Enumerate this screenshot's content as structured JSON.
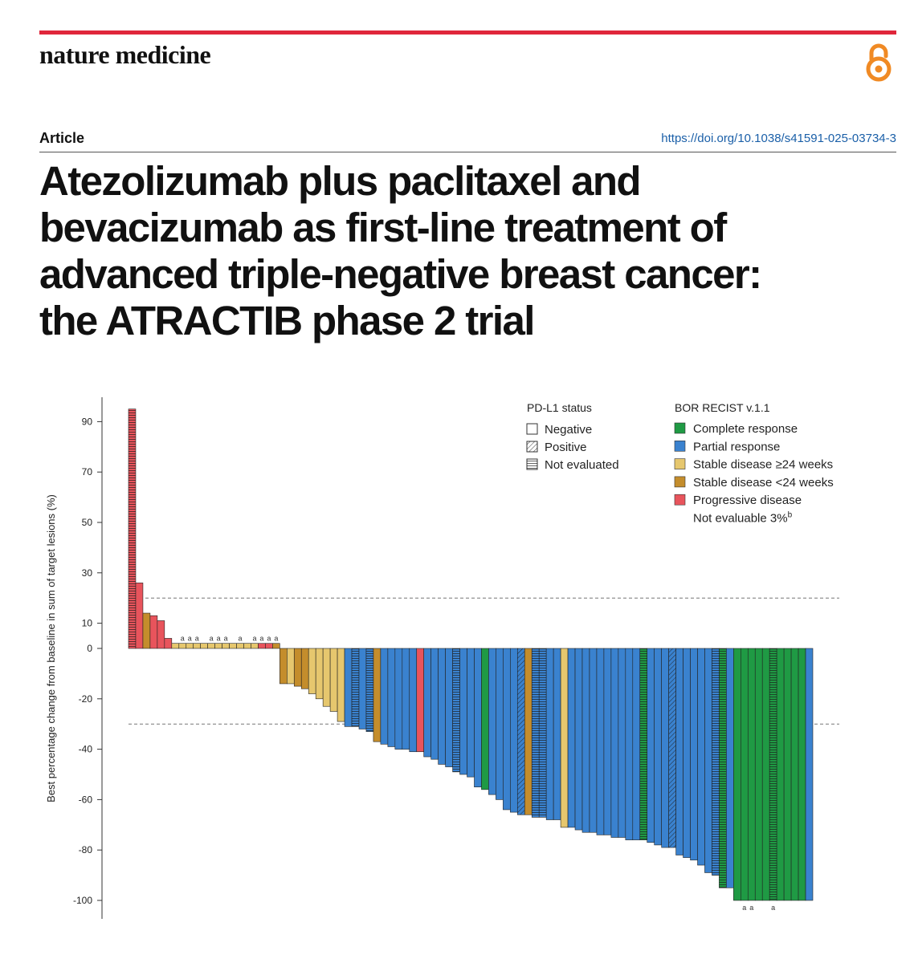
{
  "header": {
    "journal": "nature medicine",
    "article_type": "Article",
    "doi": "https://doi.org/10.1038/s41591-025-03734-3",
    "title_lines": [
      "Atezolizumab plus paclitaxel and",
      "bevacizumab as first-line treatment of",
      "advanced triple-negative breast cancer:",
      "the ATRACTIB phase 2 trial"
    ]
  },
  "colors": {
    "brand_red": "#e0263b",
    "link_blue": "#1a5fa8",
    "oa_orange": "#f08a24"
  },
  "chart_data": {
    "type": "bar",
    "ylabel": "Best percentage change from baseline in sum of target lesions (%)",
    "ylim": [
      -100,
      100
    ],
    "yticks": [
      90,
      70,
      50,
      30,
      10,
      0,
      -20,
      -40,
      -60,
      -80,
      -100
    ],
    "reference_lines": [
      20,
      -30
    ],
    "note_marker": "a",
    "legend": {
      "pdl1": {
        "title": "PD-L1 status",
        "items": [
          {
            "key": "N",
            "label": "Negative"
          },
          {
            "key": "P",
            "label": "Positive"
          },
          {
            "key": "E",
            "label": "Not evaluated"
          }
        ]
      },
      "bor": {
        "title": "BOR RECIST v.1.1",
        "items": [
          {
            "key": "CR",
            "label": "Complete response",
            "color": "#1f9a44"
          },
          {
            "key": "PR",
            "label": "Partial response",
            "color": "#3a82cf"
          },
          {
            "key": "SDL",
            "label": "Stable disease ≥24 weeks",
            "color": "#e6c76e"
          },
          {
            "key": "SDS",
            "label": "Stable disease <24 weeks",
            "color": "#c48d2c"
          },
          {
            "key": "PD",
            "label": "Progressive disease",
            "color": "#e8545c"
          }
        ],
        "not_evaluable": "Not evaluable 3%",
        "not_evaluable_sup": "b"
      }
    },
    "bars": [
      {
        "v": 95,
        "c": "PD",
        "p": "E"
      },
      {
        "v": 26,
        "c": "PD",
        "p": "N"
      },
      {
        "v": 14,
        "c": "SDS",
        "p": "N"
      },
      {
        "v": 13,
        "c": "PD",
        "p": "N"
      },
      {
        "v": 11,
        "c": "PD",
        "p": "N"
      },
      {
        "v": 4,
        "c": "PD",
        "p": "N"
      },
      {
        "v": 2,
        "c": "SDL",
        "p": "N"
      },
      {
        "v": 2,
        "c": "SDL",
        "p": "N",
        "a": true
      },
      {
        "v": 2,
        "c": "SDL",
        "p": "N",
        "a": true
      },
      {
        "v": 2,
        "c": "SDL",
        "p": "N",
        "a": true
      },
      {
        "v": 2,
        "c": "SDL",
        "p": "N"
      },
      {
        "v": 2,
        "c": "SDL",
        "p": "N",
        "a": true
      },
      {
        "v": 2,
        "c": "SDL",
        "p": "N",
        "a": true
      },
      {
        "v": 2,
        "c": "SDL",
        "p": "N",
        "a": true
      },
      {
        "v": 2,
        "c": "SDL",
        "p": "N"
      },
      {
        "v": 2,
        "c": "SDL",
        "p": "N",
        "a": true
      },
      {
        "v": 2,
        "c": "SDL",
        "p": "N"
      },
      {
        "v": 2,
        "c": "SDL",
        "p": "N",
        "a": true
      },
      {
        "v": 2,
        "c": "PD",
        "p": "N",
        "a": true
      },
      {
        "v": 2,
        "c": "PD",
        "p": "N",
        "a": true
      },
      {
        "v": 2,
        "c": "SDS",
        "p": "N",
        "a": true
      },
      {
        "v": -14,
        "c": "SDS",
        "p": "N"
      },
      {
        "v": -14,
        "c": "SDL",
        "p": "N"
      },
      {
        "v": -15,
        "c": "SDS",
        "p": "N"
      },
      {
        "v": -16,
        "c": "SDS",
        "p": "N"
      },
      {
        "v": -18,
        "c": "SDL",
        "p": "N"
      },
      {
        "v": -20,
        "c": "SDL",
        "p": "N"
      },
      {
        "v": -23,
        "c": "SDL",
        "p": "N"
      },
      {
        "v": -25,
        "c": "SDL",
        "p": "N"
      },
      {
        "v": -29,
        "c": "SDL",
        "p": "N"
      },
      {
        "v": -31,
        "c": "PR",
        "p": "N"
      },
      {
        "v": -31,
        "c": "PR",
        "p": "E"
      },
      {
        "v": -32,
        "c": "PR",
        "p": "N"
      },
      {
        "v": -33,
        "c": "PR",
        "p": "E"
      },
      {
        "v": -37,
        "c": "SDS",
        "p": "N"
      },
      {
        "v": -38,
        "c": "PR",
        "p": "N"
      },
      {
        "v": -39,
        "c": "PR",
        "p": "N"
      },
      {
        "v": -40,
        "c": "PR",
        "p": "N"
      },
      {
        "v": -40,
        "c": "PR",
        "p": "N"
      },
      {
        "v": -41,
        "c": "PR",
        "p": "N"
      },
      {
        "v": -41,
        "c": "PD",
        "p": "N"
      },
      {
        "v": -43,
        "c": "PR",
        "p": "N"
      },
      {
        "v": -44,
        "c": "PR",
        "p": "N"
      },
      {
        "v": -46,
        "c": "PR",
        "p": "N"
      },
      {
        "v": -47,
        "c": "PR",
        "p": "N"
      },
      {
        "v": -49,
        "c": "PR",
        "p": "E"
      },
      {
        "v": -50,
        "c": "PR",
        "p": "N"
      },
      {
        "v": -51,
        "c": "PR",
        "p": "N"
      },
      {
        "v": -55,
        "c": "PR",
        "p": "N"
      },
      {
        "v": -56,
        "c": "CR",
        "p": "N"
      },
      {
        "v": -58,
        "c": "PR",
        "p": "N"
      },
      {
        "v": -60,
        "c": "PR",
        "p": "N"
      },
      {
        "v": -64,
        "c": "PR",
        "p": "N"
      },
      {
        "v": -65,
        "c": "PR",
        "p": "N"
      },
      {
        "v": -66,
        "c": "PR",
        "p": "P"
      },
      {
        "v": -66,
        "c": "SDS",
        "p": "N"
      },
      {
        "v": -67,
        "c": "PR",
        "p": "E"
      },
      {
        "v": -67,
        "c": "PR",
        "p": "E"
      },
      {
        "v": -68,
        "c": "PR",
        "p": "N"
      },
      {
        "v": -68,
        "c": "PR",
        "p": "N"
      },
      {
        "v": -71,
        "c": "SDL",
        "p": "N"
      },
      {
        "v": -71,
        "c": "PR",
        "p": "N"
      },
      {
        "v": -72,
        "c": "PR",
        "p": "N"
      },
      {
        "v": -73,
        "c": "PR",
        "p": "N"
      },
      {
        "v": -73,
        "c": "PR",
        "p": "N"
      },
      {
        "v": -74,
        "c": "PR",
        "p": "N"
      },
      {
        "v": -74,
        "c": "PR",
        "p": "N"
      },
      {
        "v": -75,
        "c": "PR",
        "p": "N"
      },
      {
        "v": -75,
        "c": "PR",
        "p": "N"
      },
      {
        "v": -76,
        "c": "PR",
        "p": "N"
      },
      {
        "v": -76,
        "c": "PR",
        "p": "N"
      },
      {
        "v": -76,
        "c": "CR",
        "p": "E"
      },
      {
        "v": -77,
        "c": "PR",
        "p": "N"
      },
      {
        "v": -78,
        "c": "PR",
        "p": "N"
      },
      {
        "v": -79,
        "c": "PR",
        "p": "N"
      },
      {
        "v": -79,
        "c": "PR",
        "p": "P"
      },
      {
        "v": -82,
        "c": "PR",
        "p": "N"
      },
      {
        "v": -83,
        "c": "PR",
        "p": "N"
      },
      {
        "v": -84,
        "c": "PR",
        "p": "N"
      },
      {
        "v": -86,
        "c": "PR",
        "p": "N"
      },
      {
        "v": -89,
        "c": "PR",
        "p": "N"
      },
      {
        "v": -90,
        "c": "PR",
        "p": "E"
      },
      {
        "v": -95,
        "c": "CR",
        "p": "E"
      },
      {
        "v": -95,
        "c": "PR",
        "p": "N"
      },
      {
        "v": -100,
        "c": "CR",
        "p": "N"
      },
      {
        "v": -100,
        "c": "CR",
        "p": "N",
        "a": true
      },
      {
        "v": -100,
        "c": "CR",
        "p": "N",
        "a": true
      },
      {
        "v": -100,
        "c": "CR",
        "p": "N"
      },
      {
        "v": -100,
        "c": "CR",
        "p": "N"
      },
      {
        "v": -100,
        "c": "CR",
        "p": "E",
        "a": true
      },
      {
        "v": -100,
        "c": "CR",
        "p": "N"
      },
      {
        "v": -100,
        "c": "CR",
        "p": "N"
      },
      {
        "v": -100,
        "c": "CR",
        "p": "N"
      },
      {
        "v": -100,
        "c": "CR",
        "p": "N"
      },
      {
        "v": -100,
        "c": "PR",
        "p": "N"
      }
    ]
  }
}
